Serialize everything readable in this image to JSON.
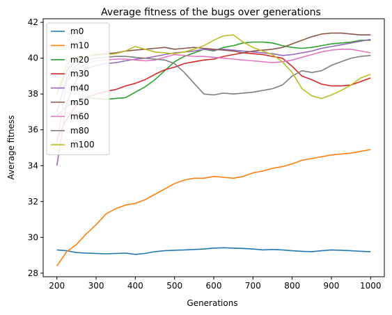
{
  "chart_data": {
    "type": "line",
    "title": "Average fitness of the bugs over generations",
    "xlabel": "Generations",
    "ylabel": "Average fitness",
    "xlim": [
      165,
      1035
    ],
    "ylim": [
      27.8,
      42.2
    ],
    "xticks": [
      200,
      300,
      400,
      500,
      600,
      700,
      800,
      900,
      1000
    ],
    "yticks": [
      28,
      30,
      32,
      34,
      36,
      38,
      40,
      42
    ],
    "grid": false,
    "legend": "upper-left",
    "x": [
      200,
      225,
      250,
      275,
      300,
      325,
      350,
      375,
      400,
      425,
      450,
      475,
      500,
      525,
      550,
      575,
      600,
      625,
      650,
      675,
      700,
      725,
      750,
      775,
      800,
      825,
      850,
      875,
      900,
      925,
      950,
      975,
      1000
    ],
    "series": [
      {
        "name": "m0",
        "color": "#1f77b4",
        "values": [
          29.3,
          29.25,
          29.15,
          29.12,
          29.1,
          29.08,
          29.1,
          29.12,
          29.05,
          29.1,
          29.2,
          29.25,
          29.28,
          29.3,
          29.32,
          29.35,
          29.4,
          29.42,
          29.4,
          29.38,
          29.35,
          29.3,
          29.32,
          29.3,
          29.25,
          29.22,
          29.2,
          29.25,
          29.3,
          29.28,
          29.25,
          29.22,
          29.2
        ]
      },
      {
        "name": "m10",
        "color": "#ff7f0e",
        "values": [
          28.4,
          29.2,
          29.6,
          30.2,
          30.7,
          31.3,
          31.6,
          31.8,
          31.9,
          32.1,
          32.4,
          32.7,
          33.0,
          33.2,
          33.3,
          33.3,
          33.4,
          33.35,
          33.3,
          33.4,
          33.6,
          33.7,
          33.85,
          33.95,
          34.1,
          34.3,
          34.4,
          34.5,
          34.6,
          34.65,
          34.7,
          34.8,
          34.9
        ]
      },
      {
        "name": "m20",
        "color": "#2ca02c",
        "values": [
          36.8,
          37.3,
          37.6,
          37.8,
          37.75,
          37.7,
          37.75,
          37.8,
          38.1,
          38.4,
          38.8,
          39.3,
          39.8,
          40.1,
          40.3,
          40.5,
          40.4,
          40.6,
          40.7,
          40.85,
          40.9,
          40.9,
          40.85,
          40.7,
          40.6,
          40.55,
          40.6,
          40.7,
          40.8,
          40.85,
          40.9,
          41.0,
          41.0
        ]
      },
      {
        "name": "m30",
        "color": "#d62728",
        "values": [
          35.5,
          36.6,
          37.4,
          37.8,
          38.0,
          38.15,
          38.25,
          38.45,
          38.6,
          38.8,
          39.1,
          39.35,
          39.5,
          39.7,
          39.8,
          39.9,
          39.95,
          40.1,
          40.2,
          40.3,
          40.25,
          40.2,
          40.1,
          40.0,
          39.55,
          39.0,
          38.8,
          38.55,
          38.45,
          38.45,
          38.5,
          38.7,
          38.9
        ]
      },
      {
        "name": "m40",
        "color": "#9467bd",
        "values": [
          34.0,
          37.5,
          38.8,
          39.4,
          39.6,
          39.7,
          39.75,
          39.85,
          39.95,
          40.0,
          40.1,
          40.2,
          40.3,
          40.35,
          40.4,
          40.5,
          40.45,
          40.5,
          40.45,
          40.4,
          40.35,
          40.3,
          40.25,
          40.15,
          40.2,
          40.3,
          40.4,
          40.55,
          40.65,
          40.75,
          40.85,
          40.95,
          41.05
        ]
      },
      {
        "name": "m50",
        "color": "#8c564b",
        "values": [
          38.0,
          39.3,
          39.9,
          40.1,
          40.2,
          40.25,
          40.3,
          40.4,
          40.45,
          40.5,
          40.55,
          40.6,
          40.5,
          40.55,
          40.6,
          40.55,
          40.5,
          40.45,
          40.4,
          40.3,
          40.4,
          40.45,
          40.5,
          40.6,
          40.8,
          41.0,
          41.2,
          41.35,
          41.4,
          41.4,
          41.35,
          41.3,
          41.3
        ]
      },
      {
        "name": "m60",
        "color": "#e377c2",
        "values": [
          35.2,
          38.7,
          39.4,
          39.7,
          39.85,
          39.9,
          39.95,
          39.95,
          39.9,
          39.85,
          39.9,
          40.05,
          40.2,
          40.15,
          40.1,
          40.1,
          40.05,
          40.0,
          39.95,
          39.9,
          39.85,
          39.8,
          39.75,
          39.8,
          39.9,
          40.05,
          40.2,
          40.35,
          40.45,
          40.5,
          40.5,
          40.4,
          40.3
        ]
      },
      {
        "name": "m80",
        "color": "#7f7f7f",
        "values": [
          37.0,
          38.9,
          39.6,
          39.9,
          40.0,
          40.05,
          40.1,
          40.1,
          40.05,
          40.0,
          39.95,
          39.9,
          39.7,
          39.2,
          38.6,
          38.0,
          37.95,
          38.05,
          38.0,
          38.05,
          38.1,
          38.2,
          38.3,
          38.5,
          39.0,
          39.3,
          39.2,
          39.3,
          39.6,
          39.8,
          40.0,
          40.1,
          40.15
        ]
      },
      {
        "name": "m100",
        "color": "#bcbd22",
        "values": [
          38.0,
          39.7,
          40.05,
          40.1,
          40.15,
          40.2,
          40.25,
          40.4,
          40.65,
          40.5,
          40.35,
          40.3,
          40.25,
          40.35,
          40.5,
          40.7,
          41.0,
          41.25,
          41.3,
          40.9,
          40.6,
          40.4,
          40.2,
          39.8,
          39.2,
          38.3,
          37.9,
          37.75,
          37.95,
          38.2,
          38.5,
          38.9,
          39.1
        ]
      }
    ]
  }
}
